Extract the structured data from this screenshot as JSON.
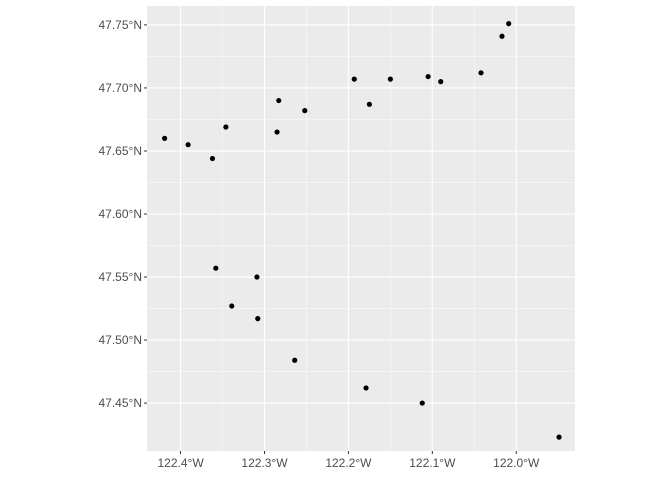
{
  "chart_data": {
    "type": "scatter",
    "title": "",
    "xlabel": "",
    "ylabel": "",
    "xlim": [
      -122.44,
      -121.93
    ],
    "ylim": [
      47.412,
      47.765
    ],
    "x_ticks": [
      -122.4,
      -122.3,
      -122.2,
      -122.1,
      -122.0
    ],
    "x_tick_labels": [
      "122.4°W",
      "122.3°W",
      "122.2°W",
      "122.1°W",
      "122.0°W"
    ],
    "y_ticks": [
      47.45,
      47.5,
      47.55,
      47.6,
      47.65,
      47.7,
      47.75
    ],
    "y_tick_labels": [
      "47.45°N",
      "47.50°N",
      "47.55°N",
      "47.60°N",
      "47.65°N",
      "47.70°N",
      "47.75°N"
    ],
    "grid": true,
    "legend": "none",
    "colors": {
      "panel_background": "#ebebeb",
      "grid_major": "#ffffff",
      "point": "#000000",
      "tick_label": "#4d4d4d",
      "tick_mark": "#333333"
    },
    "points": [
      {
        "x": -122.419,
        "y": 47.66
      },
      {
        "x": -122.391,
        "y": 47.655
      },
      {
        "x": -122.362,
        "y": 47.644
      },
      {
        "x": -122.346,
        "y": 47.669
      },
      {
        "x": -122.283,
        "y": 47.69
      },
      {
        "x": -122.285,
        "y": 47.665
      },
      {
        "x": -122.252,
        "y": 47.682
      },
      {
        "x": -122.193,
        "y": 47.707
      },
      {
        "x": -122.175,
        "y": 47.687
      },
      {
        "x": -122.15,
        "y": 47.707
      },
      {
        "x": -122.105,
        "y": 47.709
      },
      {
        "x": -122.09,
        "y": 47.705
      },
      {
        "x": -122.042,
        "y": 47.712
      },
      {
        "x": -122.017,
        "y": 47.741
      },
      {
        "x": -122.009,
        "y": 47.751
      },
      {
        "x": -122.358,
        "y": 47.557
      },
      {
        "x": -122.309,
        "y": 47.55
      },
      {
        "x": -122.339,
        "y": 47.527
      },
      {
        "x": -122.308,
        "y": 47.517
      },
      {
        "x": -122.264,
        "y": 47.484
      },
      {
        "x": -122.179,
        "y": 47.462
      },
      {
        "x": -122.112,
        "y": 47.45
      },
      {
        "x": -121.949,
        "y": 47.423
      }
    ]
  }
}
